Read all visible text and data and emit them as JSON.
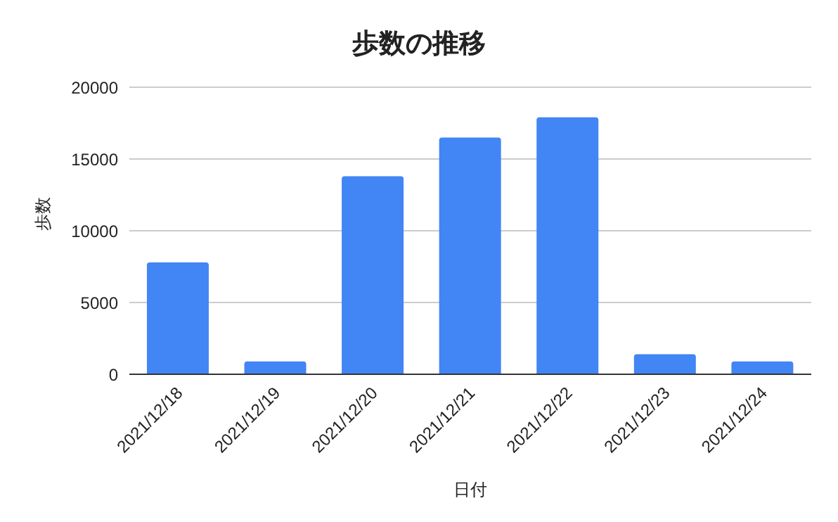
{
  "chart_data": {
    "type": "bar",
    "title": "歩数の推移",
    "xlabel": "日付",
    "ylabel": "歩数",
    "categories": [
      "2021/12/18",
      "2021/12/19",
      "2021/12/20",
      "2021/12/21",
      "2021/12/22",
      "2021/12/23",
      "2021/12/24"
    ],
    "values": [
      7800,
      900,
      13800,
      16500,
      17900,
      1400,
      900
    ],
    "color": "#4285f4",
    "ylim": [
      0,
      20000
    ],
    "yticks": [
      0,
      5000,
      10000,
      15000,
      20000
    ],
    "grid": "y"
  }
}
